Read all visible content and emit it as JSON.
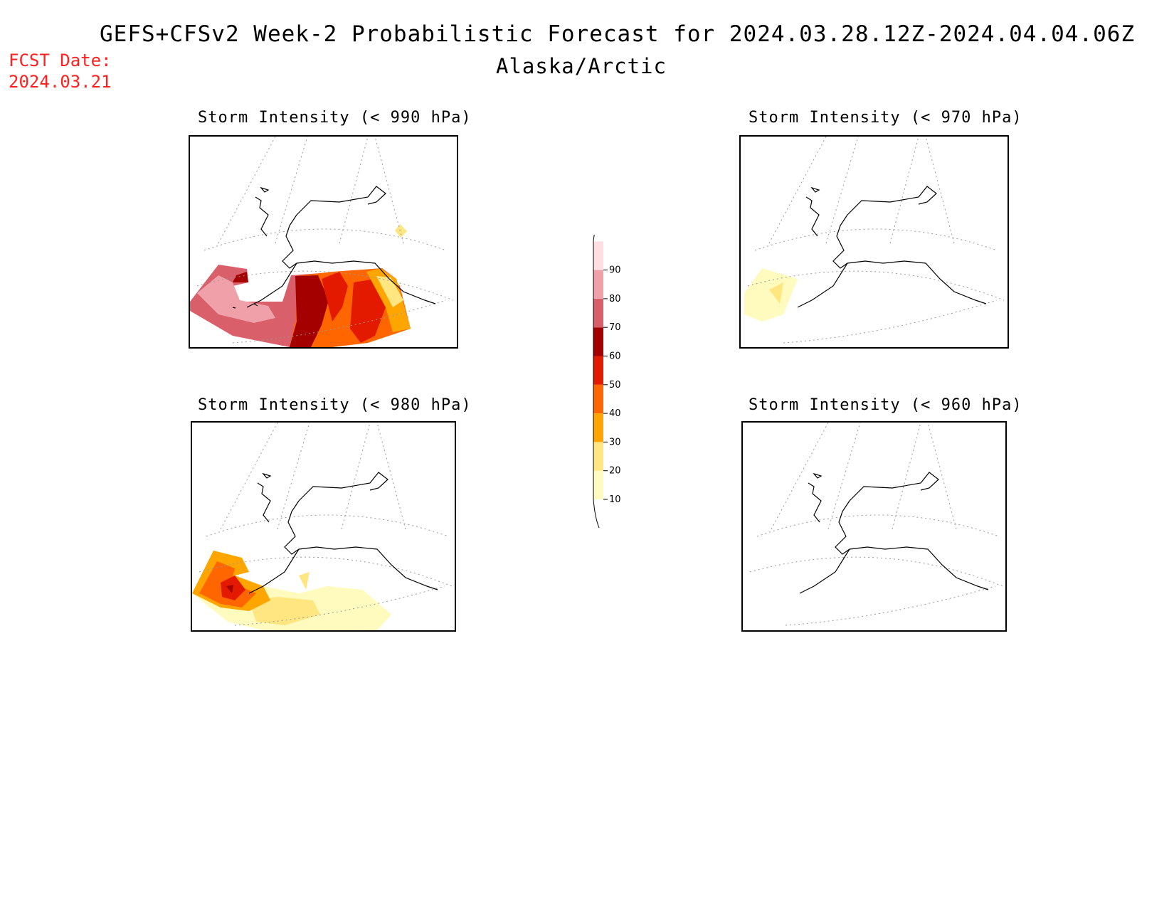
{
  "header": {
    "title": "GEFS+CFSv2 Week-2 Probabilistic Forecast for 2024.03.28.12Z-2024.04.04.06Z",
    "subtitle": "Alaska/Arctic",
    "fcst_label": "FCST Date:",
    "fcst_date": "2024.03.21"
  },
  "panels": [
    {
      "id": "p990",
      "title": "Storm Intensity (< 990 hPa)",
      "coverage": "high probability over Bering Sea, Aleutians and Gulf of Alaska"
    },
    {
      "id": "p970",
      "title": "Storm Intensity (< 970 hPa)",
      "coverage": "low probability west of Aleutians"
    },
    {
      "id": "p980",
      "title": "Storm Intensity (< 980 hPa)",
      "coverage": "moderate probability over western Aleutians, low over Gulf of Alaska"
    },
    {
      "id": "p960",
      "title": "Storm Intensity (< 960 hPa)",
      "coverage": "none"
    }
  ],
  "colorbar": {
    "labels": [
      "10",
      "20",
      "30",
      "40",
      "50",
      "60",
      "70",
      "80",
      "90"
    ],
    "colors": [
      "#fffbbf",
      "#ffe680",
      "#ffa500",
      "#ff6600",
      "#e41a00",
      "#a50000",
      "#d9606a",
      "#f0a0a8",
      "#ffdde0"
    ]
  }
}
